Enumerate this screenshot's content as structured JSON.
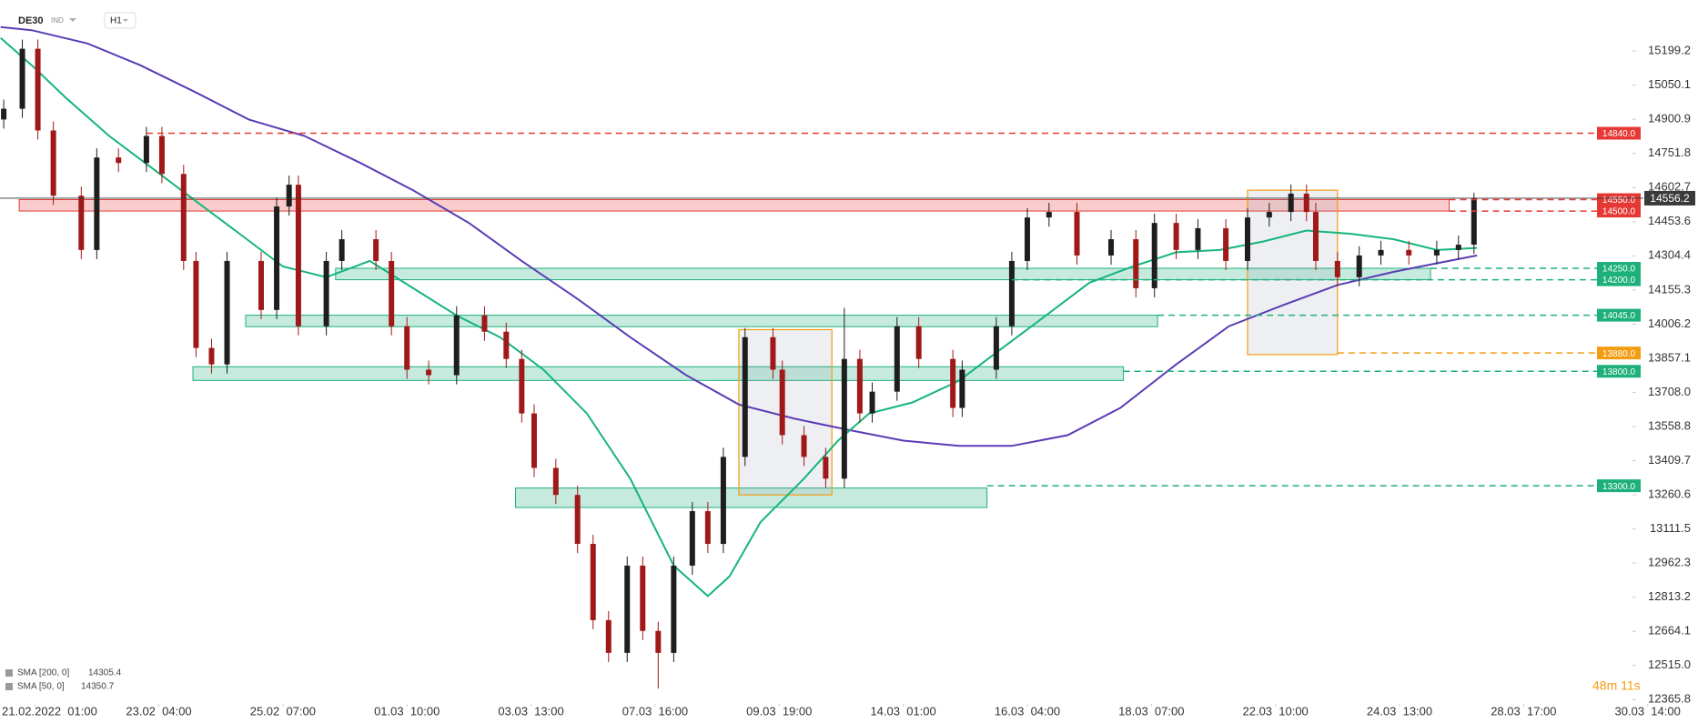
{
  "header": {
    "symbol": "DE30",
    "badge": "IND",
    "timeframe": "H1"
  },
  "chart_data": {
    "type": "candlestick",
    "x": [
      -10,
      -4,
      1,
      6,
      15,
      20,
      27,
      36,
      41,
      48,
      52,
      57,
      62,
      73,
      78,
      82,
      85,
      94,
      99,
      110,
      115,
      120,
      127,
      136,
      145,
      152,
      157,
      161,
      168,
      175,
      180,
      185,
      191,
      196,
      201,
      206,
      212,
      217,
      222,
      229,
      238,
      241,
      248,
      255,
      261,
      266,
      270,
      278,
      285,
      296,
      299,
      310,
      315,
      320,
      327,
      336,
      347,
      355,
      361,
      368,
      375,
      384,
      391,
      398,
      405,
      410,
      413,
      420,
      427,
      434,
      443,
      452,
      459,
      464
    ],
    "open": [
      14900,
      14947,
      15209,
      14852,
      14567,
      14330,
      14734,
      14710,
      14828,
      14662,
      14282,
      13902,
      13830,
      14282,
      14068,
      14520,
      14615,
      13997,
      14282,
      14377,
      14282,
      13997,
      13807,
      13783,
      14044,
      13973,
      13854,
      13616,
      13378,
      13260,
      13046,
      12713,
      12570,
      12951,
      12666,
      12570,
      12951,
      13189,
      13046,
      13426,
      13949,
      13807,
      13521,
      13426,
      13331,
      13854,
      13616,
      13711,
      13997,
      13854,
      13640,
      13807,
      13997,
      14282,
      14472,
      14496,
      14306,
      14377,
      14163,
      14448,
      14330,
      14425,
      14282,
      14472,
      14496,
      14576,
      14496,
      14282,
      14211,
      14306,
      14330,
      14306,
      14330,
      14353
    ],
    "high": [
      14987,
      15249,
      15249,
      14892,
      14607,
      14774,
      14774,
      14868,
      14868,
      14702,
      14322,
      13942,
      14322,
      14322,
      14560,
      14655,
      14655,
      14322,
      14417,
      14417,
      14322,
      14037,
      13847,
      14084,
      14084,
      14013,
      13894,
      13656,
      13418,
      13300,
      13086,
      12753,
      12991,
      12991,
      12706,
      12991,
      13229,
      13229,
      13466,
      13989,
      13989,
      13847,
      13561,
      13466,
      14077,
      13894,
      13751,
      14037,
      14037,
      13894,
      13847,
      14037,
      14322,
      14512,
      14536,
      14536,
      14417,
      14417,
      14488,
      14488,
      14465,
      14465,
      14512,
      14536,
      14616,
      14616,
      14536,
      14322,
      14346,
      14370,
      14370,
      14370,
      14393,
      14580
    ],
    "low": [
      14860,
      14907,
      14812,
      14527,
      14290,
      14290,
      14670,
      14670,
      14622,
      14242,
      13862,
      13790,
      13790,
      14028,
      14028,
      14480,
      13957,
      13957,
      14242,
      14242,
      13957,
      13767,
      13743,
      13743,
      13933,
      13814,
      13576,
      13338,
      13220,
      13006,
      12673,
      12530,
      12530,
      12626,
      12414,
      12530,
      12911,
      13006,
      13006,
      13386,
      13767,
      13481,
      13386,
      13291,
      13291,
      13576,
      13576,
      13671,
      13814,
      13600,
      13600,
      13767,
      13957,
      14242,
      14432,
      14266,
      14266,
      14123,
      14123,
      14290,
      14290,
      14242,
      14242,
      14432,
      14456,
      14456,
      14242,
      14171,
      14171,
      14266,
      14266,
      14266,
      14290,
      14313
    ],
    "close": [
      14947,
      15209,
      14852,
      14567,
      14330,
      14734,
      14710,
      14828,
      14662,
      14282,
      13902,
      13830,
      14282,
      14068,
      14520,
      14615,
      13997,
      14282,
      14377,
      14282,
      13997,
      13807,
      13783,
      14044,
      13973,
      13854,
      13616,
      13378,
      13260,
      13046,
      12713,
      12570,
      12951,
      12666,
      12570,
      12951,
      13189,
      13046,
      13426,
      13949,
      13807,
      13521,
      13426,
      13331,
      13854,
      13616,
      13711,
      13997,
      13854,
      13640,
      13807,
      13997,
      14282,
      14472,
      14496,
      14306,
      14377,
      14163,
      14448,
      14330,
      14425,
      14282,
      14472,
      14496,
      14576,
      14496,
      14282,
      14211,
      14306,
      14330,
      14306,
      14330,
      14353,
      14556
    ],
    "up_color": "#1e1e1e",
    "down_color": "#a01818",
    "xlim": [
      -11.2,
      515.1
    ],
    "xticks": [
      {
        "value": 0,
        "label": "21.02.2022  01:00"
      },
      {
        "value": 40,
        "label": "23.02  04:00"
      },
      {
        "value": 80,
        "label": "25.02  07:00"
      },
      {
        "value": 120,
        "label": "01.03  10:00"
      },
      {
        "value": 160,
        "label": "03.03  13:00"
      },
      {
        "value": 200,
        "label": "07.03  16:00"
      },
      {
        "value": 240,
        "label": "09.03  19:00"
      },
      {
        "value": 280,
        "label": "14.03  01:00"
      },
      {
        "value": 320,
        "label": "16.03  04:00"
      },
      {
        "value": 360,
        "label": "18.03  07:00"
      },
      {
        "value": 400,
        "label": "22.03  10:00"
      },
      {
        "value": 440,
        "label": "24.03  13:00"
      },
      {
        "value": 480,
        "label": "28.03  17:00"
      },
      {
        "value": 520,
        "label": "30.03  14:00"
      }
    ],
    "ylim": [
      12347,
      15422
    ],
    "yticks": [
      15199.2,
      15050.1,
      14900.9,
      14751.8,
      14602.7,
      14453.6,
      14304.4,
      14155.3,
      14006.2,
      13857.1,
      {
        "value": 13708,
        "label": "13708.0"
      },
      13558.8,
      13409.7,
      13260.6,
      13111.5,
      12962.3,
      12813.2,
      12664.1,
      {
        "value": 12515,
        "label": "12515.0"
      },
      12365.8
    ],
    "series": [
      {
        "name": "SMA [200, 0]",
        "last": 14305.4,
        "color": "#5b3cb4",
        "x": [
          -11,
          -1,
          17,
          34,
          52,
          69,
          87,
          105,
          122,
          140,
          157,
          175,
          192,
          210,
          227,
          245,
          262,
          280,
          298,
          315,
          333,
          350,
          368,
          385,
          403,
          420,
          438,
          452,
          465
        ],
        "values": [
          15304,
          15290,
          15232,
          15137,
          15018,
          14900,
          14828,
          14710,
          14591,
          14448,
          14282,
          14116,
          13949,
          13783,
          13655,
          13593,
          13545,
          13497,
          13474,
          13474,
          13521,
          13640,
          13830,
          13997,
          14092,
          14177,
          14234,
          14272,
          14306
        ]
      },
      {
        "name": "SMA [50, 0]",
        "last": 14350.7,
        "color": "#16b57b",
        "x": [
          -11,
          -1,
          10,
          24,
          38,
          52,
          66,
          80,
          94,
          108,
          122,
          136,
          150,
          164,
          178,
          192,
          206,
          217,
          224,
          234,
          248,
          259,
          269,
          283,
          298,
          312,
          326,
          340,
          354,
          368,
          382,
          396,
          410,
          424,
          438,
          452,
          465
        ],
        "values": [
          15256,
          15137,
          14995,
          14828,
          14686,
          14543,
          14401,
          14258,
          14211,
          14282,
          14163,
          14044,
          13949,
          13807,
          13616,
          13331,
          12951,
          12818,
          12904,
          13141,
          13331,
          13497,
          13616,
          13664,
          13759,
          13902,
          14044,
          14187,
          14258,
          14320,
          14330,
          14367,
          14415,
          14401,
          14377,
          14330,
          14339
        ]
      }
    ],
    "zones": [
      {
        "low": 14500,
        "high": 14550,
        "start": -5,
        "end": 456,
        "color": "#e53935"
      },
      {
        "low": 14200,
        "high": 14250,
        "start": 97,
        "end": 450,
        "color": "#1db07a"
      },
      {
        "low": 13995,
        "high": 14045,
        "start": 68,
        "end": 362,
        "color": "#1db07a"
      },
      {
        "low": 13760,
        "high": 13820,
        "start": 51,
        "end": 351,
        "color": "#1db07a"
      },
      {
        "low": 13205,
        "high": 13290,
        "start": 155,
        "end": 307,
        "color": "#1db07a"
      }
    ],
    "boxes": [
      {
        "low": 13260,
        "high": 13982,
        "start": 227,
        "end": 257,
        "color": "#f39c12"
      },
      {
        "low": 13873,
        "high": 14591,
        "start": 391,
        "end": 420,
        "color": "#f39c12"
      }
    ],
    "levels": [
      {
        "value": 14840,
        "label": "14840.0",
        "start": 36,
        "color": "#e53935"
      },
      {
        "value": 14550,
        "label": "14550.0",
        "start": 456,
        "color": "#e53935"
      },
      {
        "value": 14500,
        "label": "14500.0",
        "start": 456,
        "color": "#e53935"
      },
      {
        "value": 14250,
        "label": "14250.0",
        "start": 450,
        "color": "#1db07a"
      },
      {
        "value": 14200,
        "label": "14200.0",
        "start": 315,
        "color": "#1db07a"
      },
      {
        "value": 14045,
        "label": "14045.0",
        "start": 362,
        "color": "#1db07a"
      },
      {
        "value": 13880,
        "label": "13880.0",
        "start": 420,
        "color": "#f39c12"
      },
      {
        "value": 13800,
        "label": "13800.0",
        "start": 351,
        "color": "#1db07a"
      },
      {
        "value": 13300,
        "label": "13300.0",
        "start": 307,
        "color": "#1db07a"
      }
    ],
    "current": 14556.2,
    "countdown": "48m 11s"
  }
}
